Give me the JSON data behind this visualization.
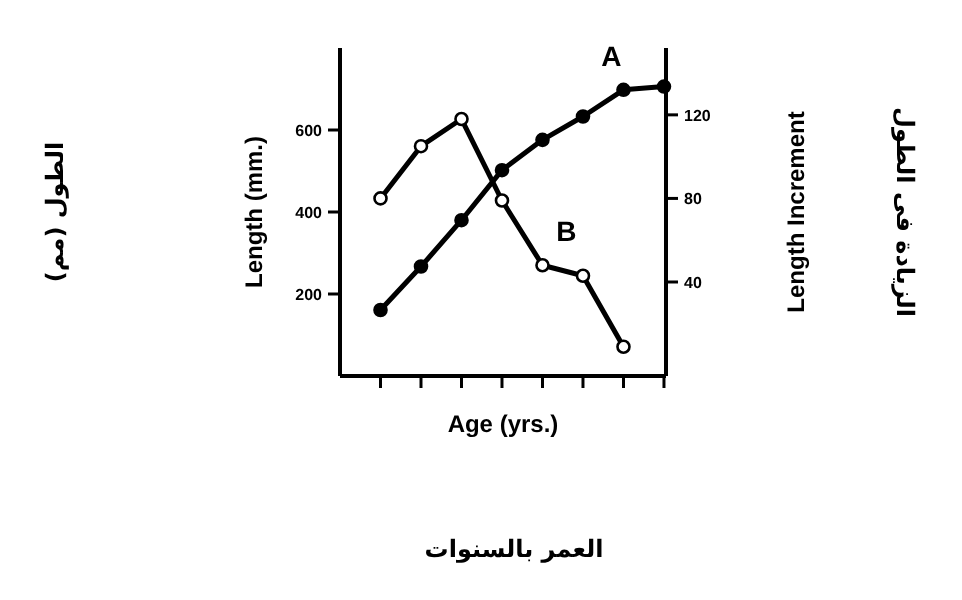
{
  "chart_data": {
    "type": "line",
    "xlabel": "Age (yrs.)",
    "ylabel": "Length (mm.)",
    "y2label": "Length Increment",
    "categories": [
      null,
      null,
      null,
      null,
      null,
      null,
      null,
      null
    ],
    "ylim": [
      0,
      800
    ],
    "yticks": [
      200,
      400,
      600
    ],
    "y2lim": [
      -5,
      152
    ],
    "y2ticks": [
      40,
      80,
      120
    ],
    "marker": "circle",
    "line_style": "solid",
    "series": [
      {
        "color": "#000000",
        "values": [
          161,
          267,
          380,
          502,
          576,
          633,
          698,
          706
        ]
      },
      {
        "color": "#000000",
        "axis": "y2",
        "values": [
          80,
          105,
          118,
          79,
          48,
          43,
          9,
          null
        ]
      }
    ],
    "annotations": [
      "A",
      "B",
      "الطول (مم)",
      "الزيادة فى الطول",
      "العمر بالسنوات"
    ]
  }
}
